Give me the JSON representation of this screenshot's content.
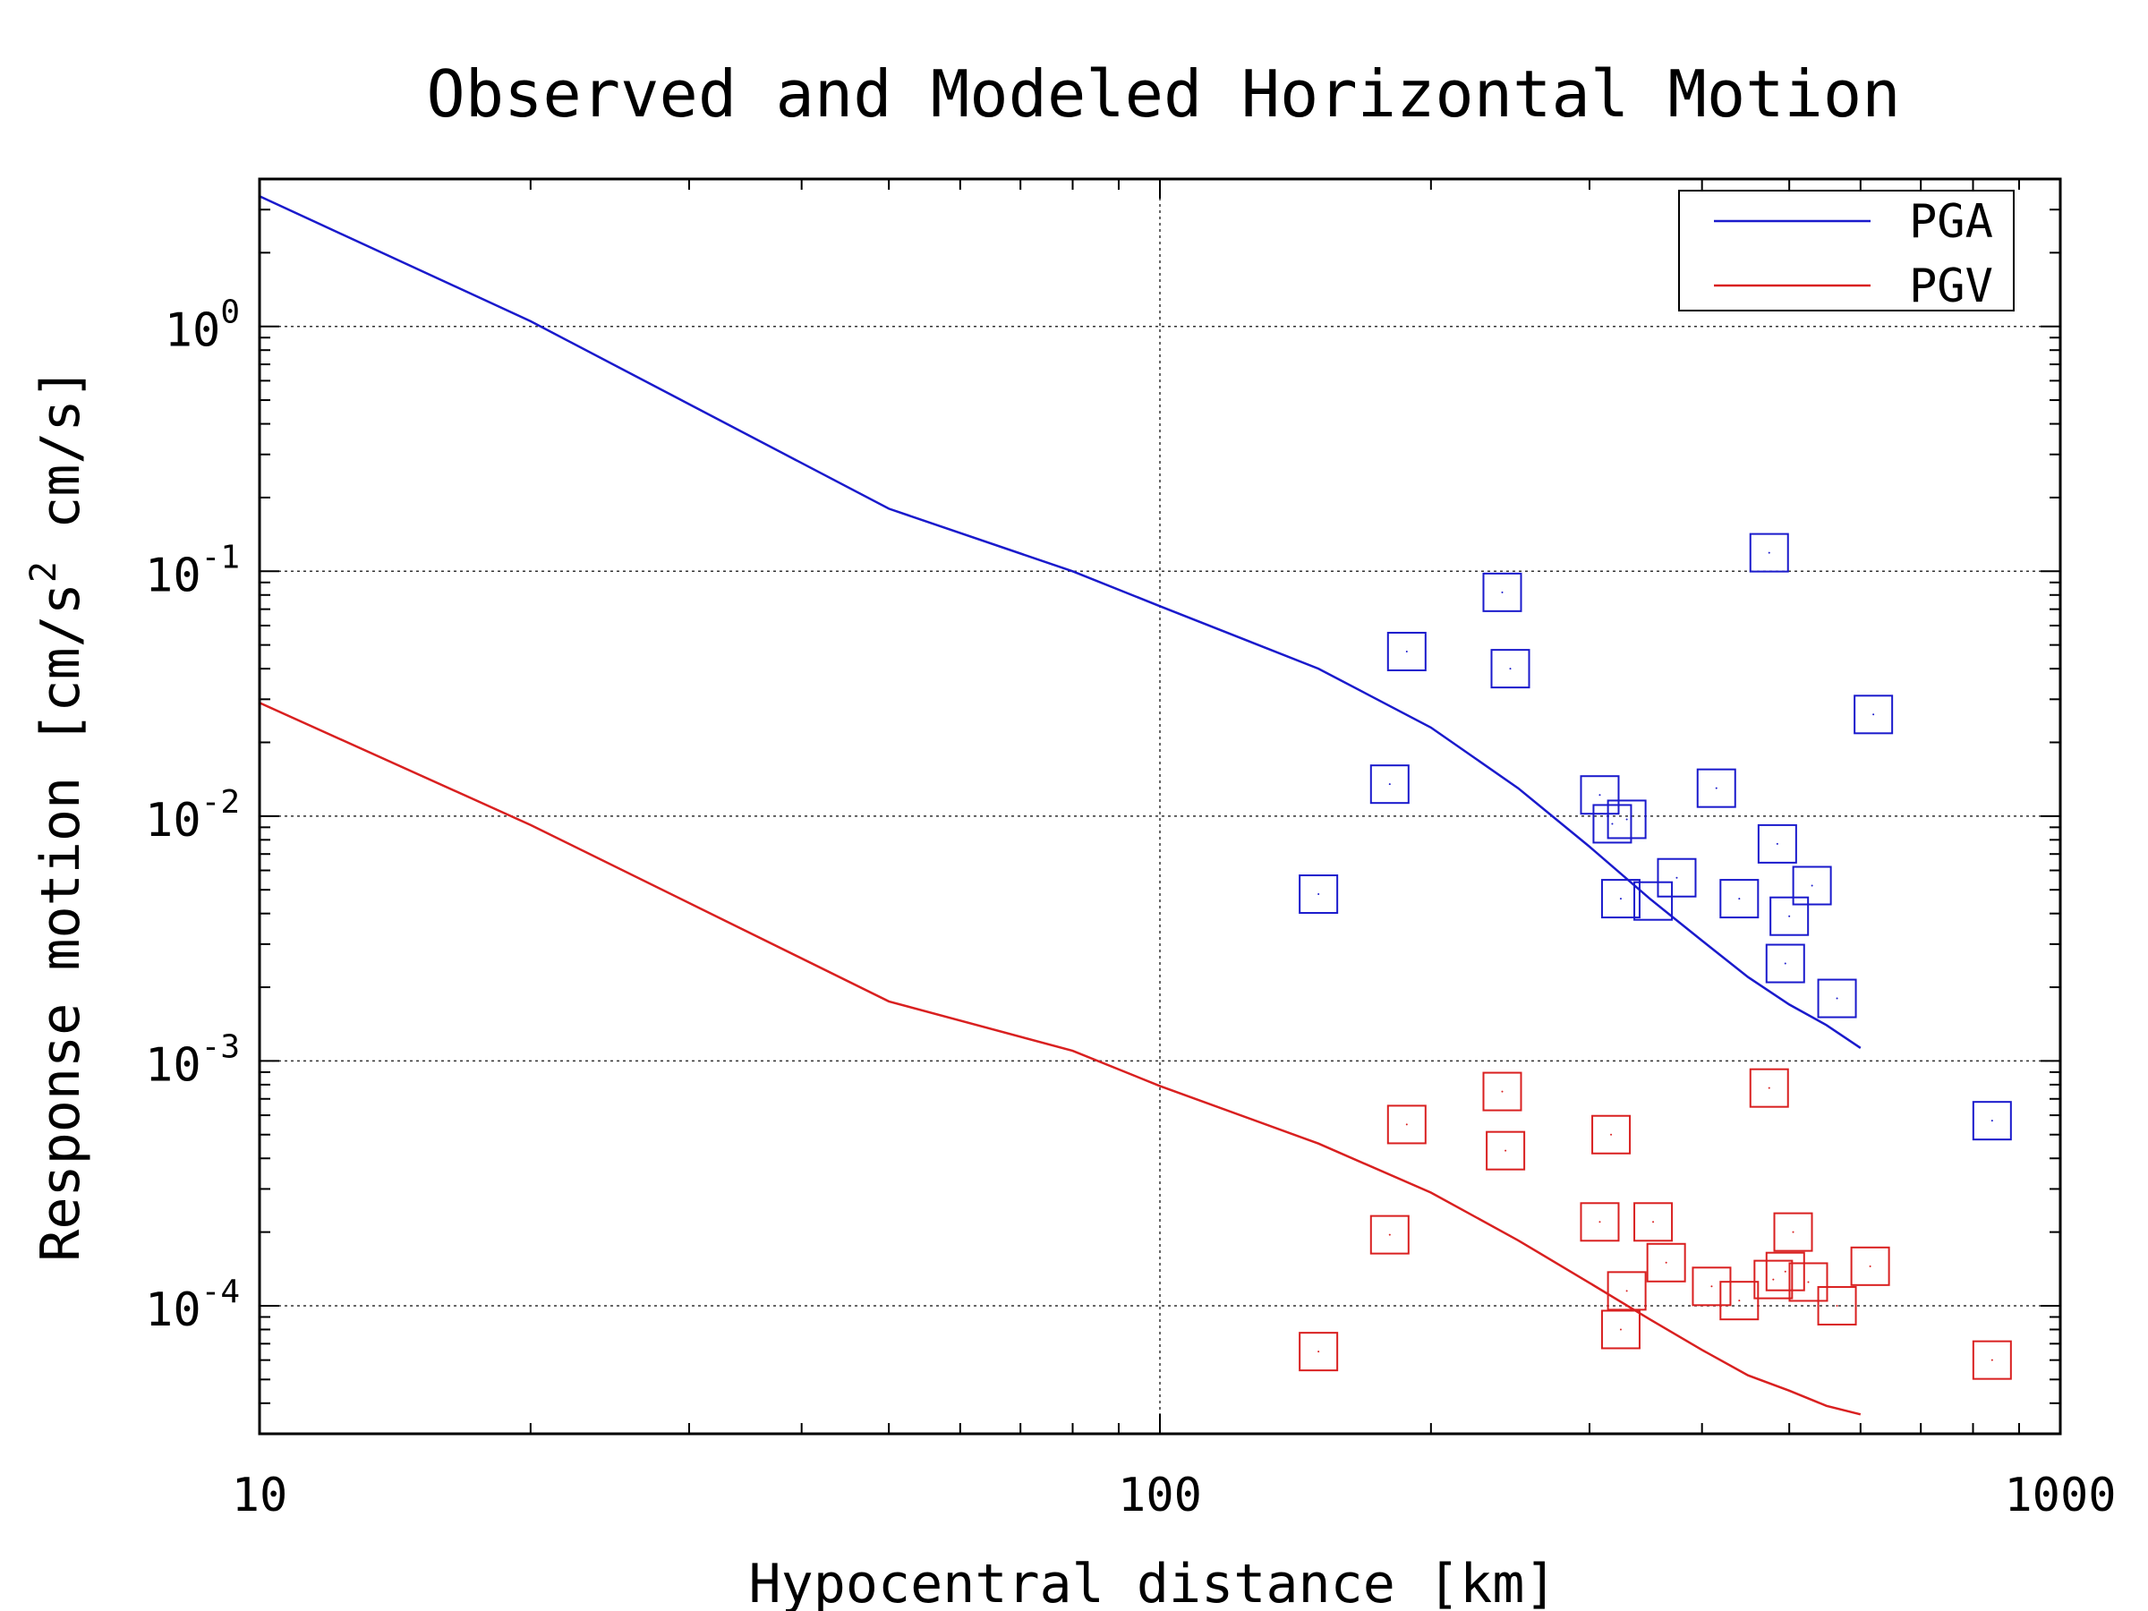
{
  "chart_data": {
    "type": "scatter",
    "title": "Observed and Modeled Horizontal Motion",
    "xlabel": "Hypocentral distance [km]",
    "ylabel": {
      "prefix": "Response motion  [cm/s",
      "superscript": "2",
      "suffix": "  cm/s]"
    },
    "x_scale": "log",
    "y_scale": "log",
    "xlim": [
      10,
      1000
    ],
    "ylim": [
      3e-05,
      4
    ],
    "x_ticks": [
      {
        "value": 10,
        "label": "10"
      },
      {
        "value": 100,
        "label": "100"
      },
      {
        "value": 1000,
        "label": "1000"
      }
    ],
    "y_ticks": [
      {
        "value": 1,
        "base": "10",
        "exp": "0"
      },
      {
        "value": 0.1,
        "base": "10",
        "exp": "-1"
      },
      {
        "value": 0.01,
        "base": "10",
        "exp": "-2"
      },
      {
        "value": 0.001,
        "base": "10",
        "exp": "-3"
      },
      {
        "value": 0.0001,
        "base": "10",
        "exp": "-4"
      }
    ],
    "grid": true,
    "legend_position": "top-right",
    "colors": {
      "pga": "#1a1acc",
      "pgv": "#d92020"
    },
    "series": [
      {
        "name": "PGA",
        "kind": "line",
        "color": "#1a1acc",
        "x": [
          10,
          20,
          50,
          80,
          100,
          150,
          200,
          250,
          300,
          350,
          400,
          450,
          500,
          550,
          600
        ],
        "y": [
          3.4,
          1.05,
          0.18,
          0.1,
          0.072,
          0.04,
          0.023,
          0.013,
          0.0075,
          0.0046,
          0.0031,
          0.0022,
          0.0017,
          0.0014,
          0.00113
        ]
      },
      {
        "name": "PGV",
        "kind": "line",
        "color": "#d92020",
        "x": [
          10,
          20,
          50,
          80,
          100,
          150,
          200,
          250,
          300,
          350,
          400,
          450,
          500,
          550,
          600
        ],
        "y": [
          0.029,
          0.0092,
          0.00175,
          0.0011,
          0.00079,
          0.00046,
          0.00029,
          0.000185,
          0.000124,
          8.8e-05,
          6.6e-05,
          5.2e-05,
          4.5e-05,
          3.9e-05,
          3.6e-05
        ]
      },
      {
        "name": "",
        "kind": "markers",
        "color": "#1a1acc",
        "x": [
          150,
          180,
          188,
          240,
          245,
          308,
          318,
          325,
          330,
          353,
          375,
          415,
          440,
          475,
          485,
          495,
          500,
          530,
          565,
          620,
          840
        ],
        "y": [
          0.0048,
          0.0135,
          0.047,
          0.082,
          0.04,
          0.0122,
          0.0093,
          0.0046,
          0.0097,
          0.0045,
          0.0056,
          0.013,
          0.0046,
          0.119,
          0.0077,
          0.0025,
          0.0039,
          0.0052,
          0.0018,
          0.026,
          0.00057
        ]
      },
      {
        "name": "",
        "kind": "markers",
        "color": "#d92020",
        "x": [
          150,
          180,
          188,
          240,
          242,
          308,
          317,
          325,
          330,
          353,
          365,
          410,
          440,
          475,
          480,
          495,
          505,
          525,
          565,
          615,
          840
        ],
        "y": [
          6.5e-05,
          0.000195,
          0.00055,
          0.00075,
          0.00043,
          0.00022,
          0.0005,
          8e-05,
          0.000115,
          0.00022,
          0.00015,
          0.00012,
          0.000105,
          0.000775,
          0.000128,
          0.000138,
          0.0002,
          0.000125,
          0.0001,
          0.000145,
          6e-05
        ]
      }
    ]
  }
}
